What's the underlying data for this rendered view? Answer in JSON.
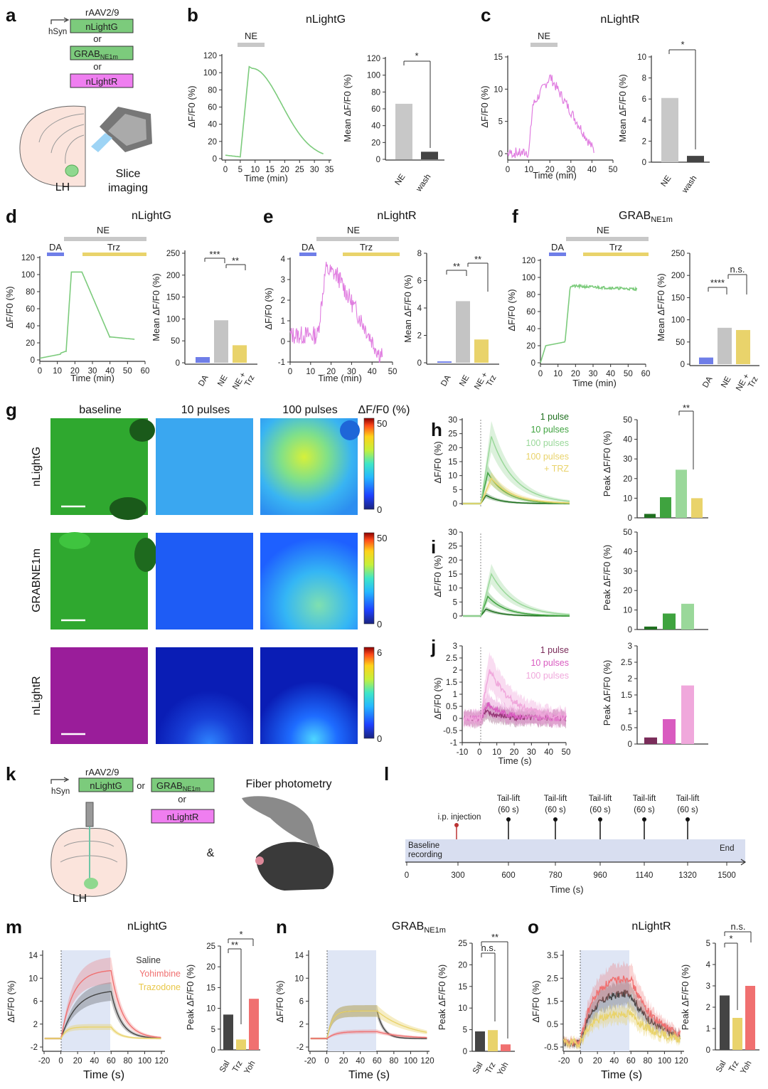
{
  "colors": {
    "nlightg": "#7ccb7c",
    "nlightr": "#e07de0",
    "grab": "#7ccb7c",
    "ne_bar": "#c8c8c8",
    "wash_bar": "#444444",
    "da": "#6f7ee8",
    "trz": "#e9d36b",
    "gray": "#c4c4c4",
    "saline": "#444444",
    "yohimbine": "#f07070",
    "trazodone": "#e9d36b",
    "dg1": "#1f6f1f",
    "dg2": "#3fa33f",
    "dg3": "#9ad89a",
    "dm1": "#7a2c5a",
    "dm2": "#d95bc0",
    "dm3": "#f0a8dc"
  },
  "panels": {
    "a": {
      "letter": "a",
      "virus": "rAAV2/9",
      "promoter": "hSyn",
      "sensor1": "nLightG",
      "or1": "or",
      "sensor2_main": "GRAB",
      "sensor2_sub": "NE1m",
      "or2": "or",
      "sensor3": "nLightR",
      "region": "LH",
      "imaging_1": "Slice",
      "imaging_2": "imaging"
    },
    "b": {
      "letter": "b",
      "title": "nLightG",
      "bar_label": "NE",
      "ylabel": "ΔF/F0 (%)",
      "xlabel": "Time (min)",
      "yticks": [
        "120",
        "100",
        "80",
        "60",
        "40",
        "20",
        "0"
      ],
      "xticks": [
        "0",
        "5",
        "10",
        "15",
        "20",
        "25",
        "30",
        "35"
      ],
      "bar_ylabel": "Mean ΔF/F0 (%)",
      "bar_yticks": [
        "120",
        "100",
        "80",
        "60",
        "40",
        "20",
        "0"
      ],
      "bar_cats": [
        "NE",
        "wash"
      ],
      "bar_values": [
        66,
        9
      ],
      "sig": "*"
    },
    "c": {
      "letter": "c",
      "title": "nLightR",
      "bar_label": "NE",
      "ylabel": "ΔF/F0 (%)",
      "xlabel": "Time (min)",
      "yticks": [
        "15",
        "10",
        "5",
        "0"
      ],
      "xticks": [
        "0",
        "10",
        "20",
        "30",
        "40",
        "50"
      ],
      "bar_ylabel": "Mean ΔF/F0 (%)",
      "bar_yticks": [
        "10",
        "8",
        "6",
        "4",
        "2",
        "0"
      ],
      "bar_cats": [
        "NE",
        "wash"
      ],
      "bar_values": [
        6.1,
        0.6
      ],
      "sig": "*"
    },
    "d": {
      "letter": "d",
      "title": "nLightG",
      "ne": "NE",
      "da": "DA",
      "trz": "Trz",
      "ylabel": "ΔF/F0 (%)",
      "xlabel": "Time (min)",
      "yticks": [
        "120",
        "100",
        "80",
        "60",
        "40",
        "20",
        "0"
      ],
      "xticks": [
        "0",
        "10",
        "20",
        "30",
        "40",
        "50",
        "60"
      ],
      "bar_ylabel": "Mean ΔF/F0 (%)",
      "bar_yticks": [
        "250",
        "200",
        "150",
        "100",
        "50",
        "0"
      ],
      "bar_cats": [
        "DA",
        "NE",
        "NE+\nTrz"
      ],
      "bar_cat_a": "NE +",
      "bar_cat_b": "Trz",
      "bar_values": [
        13,
        97,
        40
      ],
      "sig1": "***",
      "sig2": "**"
    },
    "e": {
      "letter": "e",
      "title": "nLightR",
      "ne": "NE",
      "da": "DA",
      "trz": "Trz",
      "ylabel": "ΔF/F0 (%)",
      "xlabel": "Time (min)",
      "yticks": [
        "4",
        "3",
        "2",
        "1",
        "0",
        "-1"
      ],
      "xticks": [
        "0",
        "10",
        "20",
        "30",
        "40",
        "50"
      ],
      "bar_ylabel": "Mean ΔF/F0 (%)",
      "bar_yticks": [
        "8",
        "6",
        "4",
        "2",
        "0"
      ],
      "bar_cat_a": "NE +",
      "bar_cat_b": "Trz",
      "bar_values": [
        0.1,
        4.5,
        1.7
      ],
      "sig1": "**",
      "sig2": "**"
    },
    "f": {
      "letter": "f",
      "title_main": "GRAB",
      "title_sub": "NE1m",
      "ne": "NE",
      "da": "DA",
      "trz": "Trz",
      "ylabel": "ΔF/F0 (%)",
      "xlabel": "Time (min)",
      "yticks": [
        "120",
        "100",
        "80",
        "60",
        "40",
        "20",
        "0"
      ],
      "xticks": [
        "0",
        "10",
        "20",
        "30",
        "40",
        "50",
        "60"
      ],
      "bar_ylabel": "Mean ΔF/F0 (%)",
      "bar_yticks": [
        "250",
        "200",
        "150",
        "100",
        "50",
        "0"
      ],
      "bar_cat_a": "NE +",
      "bar_cat_b": "Trz",
      "bar_values": [
        15,
        82,
        77
      ],
      "sig1": "****",
      "sig2": "n.s."
    },
    "g": {
      "letter": "g",
      "cols": [
        "baseline",
        "10 pulses",
        "100 pulses"
      ],
      "cbar_title": "ΔF/F0 (%)",
      "rows": [
        {
          "label": "nLightG",
          "cmax": "50",
          "cmin": "0"
        },
        {
          "label": "GRABNE1m",
          "cmax": "50",
          "cmin": "0"
        },
        {
          "label": "nLightR",
          "cmax": "6",
          "cmin": "0"
        }
      ]
    },
    "h": {
      "letter": "h",
      "ylabel": "ΔF/F0 (%)",
      "yticks": [
        "30",
        "25",
        "20",
        "15",
        "10",
        "5",
        "0"
      ],
      "legend": [
        "1 pulse",
        "10 pulses",
        "100 pulses",
        "100 pulses",
        "+ TRZ"
      ],
      "bar_ylabel": "Peak ΔF/F0 (%)",
      "bar_yticks": [
        "50",
        "40",
        "30",
        "20",
        "10",
        "0"
      ],
      "bar_values": [
        2,
        10.5,
        24.5,
        10
      ],
      "sig": "**"
    },
    "i": {
      "letter": "i",
      "ylabel": "ΔF/F0 (%)",
      "yticks": [
        "30",
        "25",
        "20",
        "15",
        "10",
        "5",
        "0"
      ],
      "bar_ylabel": "Peak ΔF/F0 (%)",
      "bar_yticks": [
        "50",
        "40",
        "30",
        "20",
        "10",
        "0"
      ],
      "bar_values": [
        1.5,
        8.2,
        13.2
      ]
    },
    "j": {
      "letter": "j",
      "ylabel": "ΔF/F0 (%)",
      "xlabel": "Time (s)",
      "yticks": [
        "3",
        "2.5",
        "2",
        "1.5",
        "1",
        "0.5",
        "0",
        "-0.5",
        "-1"
      ],
      "xticks": [
        "-10",
        "0",
        "10",
        "20",
        "30",
        "40",
        "50"
      ],
      "legend": [
        "1 pulse",
        "10 pulses",
        "100 pulses"
      ],
      "bar_ylabel": "Peak ΔF/F0 (%)",
      "bar_yticks": [
        "3",
        "2.5",
        "2",
        "1.5",
        "1",
        "0.5",
        "0"
      ],
      "bar_values": [
        0.2,
        0.76,
        1.79
      ]
    },
    "k": {
      "letter": "k",
      "virus": "rAAV2/9",
      "promoter": "hSyn",
      "sensor1": "nLightG",
      "or1": "or",
      "sensor2_main": "GRAB",
      "sensor2_sub": "NE1m",
      "or2": "or",
      "sensor3": "nLightR",
      "region": "LH",
      "title": "Fiber photometry",
      "amp": "&"
    },
    "l": {
      "letter": "l",
      "injection": "i.p. injection",
      "tail": "Tail-lift",
      "tail_dur": "(60 s)",
      "baseline_1": "Baseline",
      "baseline_2": "recording",
      "end": "End",
      "xticks": [
        "0",
        "300",
        "600",
        "780",
        "960",
        "1140",
        "1320",
        "1500"
      ],
      "xlabel": "Time (s)"
    },
    "m": {
      "letter": "m",
      "title": "nLightG",
      "ylabel": "ΔF/F0 (%)",
      "xlabel": "Time (s)",
      "yticks": [
        "14",
        "10",
        "6",
        "2",
        "-2"
      ],
      "xticks": [
        "-20",
        "0",
        "20",
        "40",
        "60",
        "80",
        "100",
        "120"
      ],
      "legend": [
        "Saline",
        "Yohimbine",
        "Trazodone"
      ],
      "bar_ylabel": "Peak ΔF/F0 (%)",
      "bar_yticks": [
        "25",
        "20",
        "15",
        "10",
        "5",
        "0"
      ],
      "bar_cats": [
        "Sal",
        "Trz",
        "Yoh"
      ],
      "bar_values": [
        8.5,
        2.5,
        12.3
      ],
      "sig1": "**",
      "sig2": "*"
    },
    "n": {
      "letter": "n",
      "title_main": "GRAB",
      "title_sub": "NE1m",
      "ylabel": "ΔF/F0 (%)",
      "xlabel": "Time (s)",
      "yticks": [
        "14",
        "10",
        "6",
        "2",
        "-2"
      ],
      "xticks": [
        "-20",
        "0",
        "20",
        "40",
        "60",
        "80",
        "100",
        "120"
      ],
      "bar_ylabel": "Peak ΔF/F0 (%)",
      "bar_yticks": [
        "25",
        "20",
        "15",
        "10",
        "5",
        "0"
      ],
      "bar_cats": [
        "Sal",
        "Trz",
        "Yoh"
      ],
      "bar_values": [
        4.6,
        4.9,
        1.6
      ],
      "sig1": "n.s.",
      "sig2": "**"
    },
    "o": {
      "letter": "o",
      "title": "nLightR",
      "ylabel": "ΔF/F0 (%)",
      "xlabel": "Time (s)",
      "yticks": [
        "3.5",
        "2.5",
        "1.5",
        "0.5",
        "-0.5"
      ],
      "xticks": [
        "-20",
        "0",
        "20",
        "40",
        "60",
        "80",
        "100",
        "120"
      ],
      "bar_ylabel": "Peak ΔF/F0 (%)",
      "bar_yticks": [
        "5",
        "4",
        "3",
        "2",
        "1",
        "0"
      ],
      "bar_cats": [
        "Sal",
        "Trz",
        "Yoh"
      ],
      "bar_values": [
        2.55,
        1.5,
        3.0
      ],
      "sig1": "*",
      "sig2": "n.s."
    }
  }
}
